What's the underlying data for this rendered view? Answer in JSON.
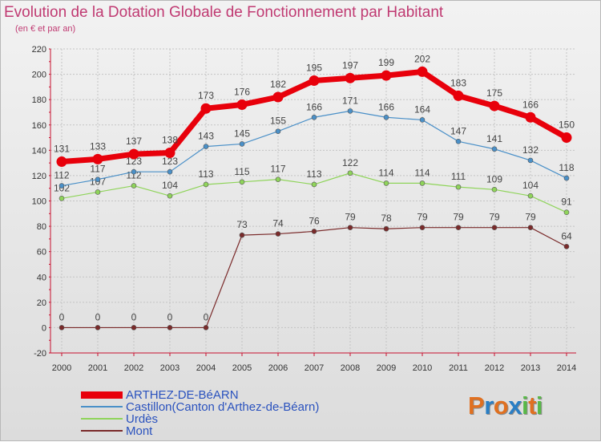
{
  "title": "Evolution de la Dotation Globale de Fonctionnement par Habitant",
  "subtitle": "(en € et par an)",
  "logo": {
    "letters": [
      "P",
      "r",
      "o",
      "x",
      "i",
      "t",
      "i"
    ],
    "colors": [
      "#e07020",
      "#2a7ec4",
      "#e07020",
      "#2a7ec4",
      "#58b848",
      "#e07020",
      "#58b848"
    ]
  },
  "chart_data": {
    "type": "line",
    "title": "Evolution de la Dotation Globale de Fonctionnement par Habitant",
    "subtitle": "(en € et par an)",
    "xlabel": "",
    "ylabel": "",
    "ylim": [
      -20,
      220
    ],
    "yticks": [
      -20,
      0,
      20,
      40,
      60,
      80,
      100,
      120,
      140,
      160,
      180,
      200,
      220
    ],
    "grid": true,
    "legend_position": "bottom-left",
    "categories": [
      "2000",
      "2001",
      "2002",
      "2003",
      "2004",
      "2005",
      "2006",
      "2007",
      "2008",
      "2009",
      "2010",
      "2011",
      "2012",
      "2013",
      "2014"
    ],
    "series": [
      {
        "name": "ARTHEZ-DE-BéARN",
        "color": "#e8000b",
        "emphasis": true,
        "values": [
          131,
          133,
          137,
          138,
          173,
          176,
          182,
          195,
          197,
          199,
          202,
          183,
          175,
          166,
          150
        ]
      },
      {
        "name": "Castillon(Canton d'Arthez-de-Béarn)",
        "color": "#4a90c8",
        "emphasis": false,
        "values": [
          112,
          117,
          123,
          123,
          143,
          145,
          155,
          166,
          171,
          166,
          164,
          147,
          141,
          132,
          118
        ]
      },
      {
        "name": "Urdès",
        "color": "#8fd45a",
        "emphasis": false,
        "values": [
          102,
          107,
          112,
          104,
          113,
          115,
          117,
          113,
          122,
          114,
          114,
          111,
          109,
          104,
          91
        ]
      },
      {
        "name": "Mont",
        "color": "#7a2a2a",
        "emphasis": false,
        "values": [
          0,
          0,
          0,
          0,
          0,
          73,
          74,
          76,
          79,
          78,
          79,
          79,
          79,
          79,
          64
        ]
      }
    ]
  }
}
